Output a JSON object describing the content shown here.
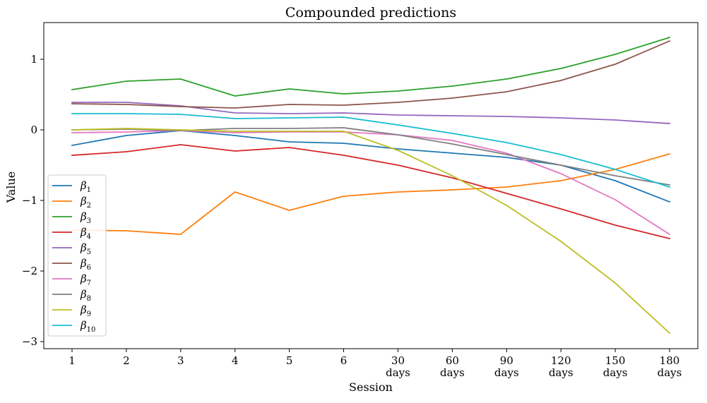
{
  "chart_data": {
    "type": "line",
    "title": "Compounded predictions",
    "xlabel": "Session",
    "ylabel": "Value",
    "categories": [
      "1",
      "2",
      "3",
      "4",
      "5",
      "6",
      "30 days",
      "60 days",
      "90 days",
      "120 days",
      "150 days",
      "180 days"
    ],
    "ylim": [
      -3.1,
      1.52
    ],
    "yticks": [
      1,
      0,
      -1,
      -2,
      -3
    ],
    "ytick_labels": [
      "1",
      "0",
      "−1",
      "−2",
      "−3"
    ],
    "legend_position": "lower-left",
    "grid": false,
    "series": [
      {
        "name": "β",
        "sub": "1",
        "color": "#1f77b4",
        "values": [
          -0.22,
          -0.08,
          -0.01,
          -0.08,
          -0.17,
          -0.19,
          -0.27,
          -0.33,
          -0.39,
          -0.5,
          -0.72,
          -1.02
        ]
      },
      {
        "name": "β",
        "sub": "2",
        "color": "#ff7f0e",
        "values": [
          -1.42,
          -1.43,
          -1.48,
          -0.88,
          -1.14,
          -0.94,
          -0.88,
          -0.85,
          -0.81,
          -0.72,
          -0.56,
          -0.34
        ]
      },
      {
        "name": "β",
        "sub": "3",
        "color": "#2ca02c",
        "values": [
          0.57,
          0.69,
          0.72,
          0.48,
          0.58,
          0.51,
          0.55,
          0.62,
          0.72,
          0.87,
          1.07,
          1.31
        ]
      },
      {
        "name": "β",
        "sub": "4",
        "color": "#d62728",
        "values": [
          -0.36,
          -0.31,
          -0.21,
          -0.3,
          -0.25,
          -0.36,
          -0.5,
          -0.68,
          -0.9,
          -1.12,
          -1.35,
          -1.54
        ]
      },
      {
        "name": "β",
        "sub": "5",
        "color": "#9467bd",
        "values": [
          0.39,
          0.39,
          0.34,
          0.24,
          0.23,
          0.24,
          0.21,
          0.2,
          0.19,
          0.17,
          0.14,
          0.09
        ]
      },
      {
        "name": "β",
        "sub": "6",
        "color": "#8c564b",
        "values": [
          0.37,
          0.36,
          0.33,
          0.31,
          0.36,
          0.35,
          0.39,
          0.45,
          0.54,
          0.7,
          0.93,
          1.26
        ]
      },
      {
        "name": "β",
        "sub": "7",
        "color": "#e377c2",
        "values": [
          -0.04,
          -0.03,
          -0.01,
          -0.04,
          -0.03,
          -0.03,
          -0.07,
          -0.15,
          -0.33,
          -0.62,
          -0.99,
          -1.48
        ]
      },
      {
        "name": "β",
        "sub": "8",
        "color": "#7f7f7f",
        "values": [
          0.0,
          0.01,
          -0.01,
          0.02,
          0.02,
          0.03,
          -0.07,
          -0.2,
          -0.35,
          -0.5,
          -0.65,
          -0.78
        ]
      },
      {
        "name": "β",
        "sub": "9",
        "color": "#bcbd22",
        "values": [
          0.0,
          0.02,
          0.0,
          -0.02,
          -0.02,
          -0.02,
          -0.29,
          -0.65,
          -1.07,
          -1.58,
          -2.17,
          -2.88
        ]
      },
      {
        "name": "β",
        "sub": "10",
        "color": "#17becf",
        "values": [
          0.23,
          0.23,
          0.22,
          0.16,
          0.17,
          0.18,
          0.07,
          -0.05,
          -0.18,
          -0.35,
          -0.56,
          -0.81
        ]
      }
    ]
  }
}
